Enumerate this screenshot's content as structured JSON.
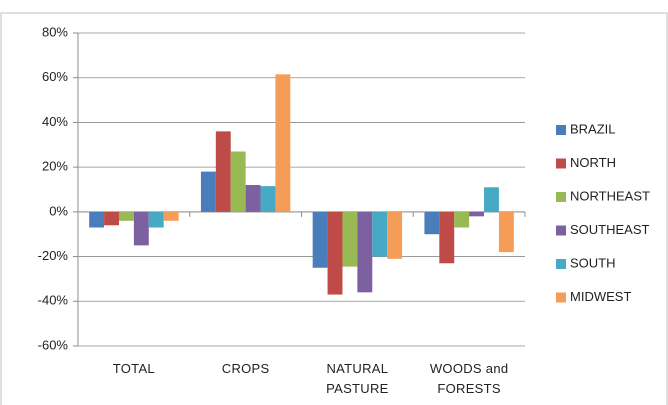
{
  "chart_data": {
    "type": "bar",
    "categories": [
      "TOTAL",
      "CROPS",
      "NATURAL PASTURE",
      "WOODS and FORESTS"
    ],
    "series": [
      {
        "name": "BRAZIL",
        "color": "#4a7ebb",
        "values": [
          -7,
          18,
          -25,
          -10
        ]
      },
      {
        "name": "NORTH",
        "color": "#be4b48",
        "values": [
          -6,
          36,
          -37,
          -23
        ]
      },
      {
        "name": "NORTHEAST",
        "color": "#98b954",
        "values": [
          -4,
          27,
          -24.5,
          -7
        ]
      },
      {
        "name": "SOUTHEAST",
        "color": "#7d60a0",
        "values": [
          -15,
          12,
          -36,
          -2
        ]
      },
      {
        "name": "SOUTH",
        "color": "#46aac5",
        "values": [
          -7,
          11.5,
          -20,
          11
        ]
      },
      {
        "name": "MIDWEST",
        "color": "#f59d56",
        "values": [
          -4,
          61.5,
          -21,
          -18
        ]
      }
    ],
    "ylim": [
      -60,
      80
    ],
    "yticks": [
      {
        "value": -60,
        "label": "-60%"
      },
      {
        "value": -40,
        "label": "-40%"
      },
      {
        "value": -20,
        "label": "-20%"
      },
      {
        "value": 0,
        "label": "0%"
      },
      {
        "value": 20,
        "label": "20%"
      },
      {
        "value": 40,
        "label": "40%"
      },
      {
        "value": 60,
        "label": "60%"
      },
      {
        "value": 80,
        "label": "80%"
      }
    ],
    "grid": true,
    "legend": "right"
  }
}
